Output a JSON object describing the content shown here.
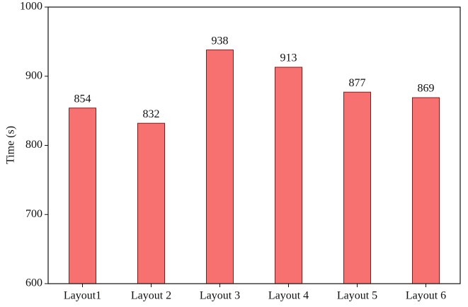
{
  "chart_data": {
    "type": "bar",
    "y_label": "Time (s)",
    "categories": [
      "Layout1",
      "Layout 2",
      "Layout 3",
      "Layout 4",
      "Layout 5",
      "Layout 6"
    ],
    "values": [
      854,
      832,
      938,
      913,
      877,
      869
    ],
    "color": "#f87171",
    "edge_color": "#8b1a1a",
    "ylim": [
      600,
      1000
    ],
    "yticks": [
      600,
      700,
      800,
      900,
      1000
    ],
    "grid": false
  }
}
